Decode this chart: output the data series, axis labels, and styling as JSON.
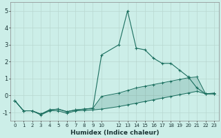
{
  "xlabel": "Humidex (Indice chaleur)",
  "x": [
    0,
    1,
    2,
    3,
    4,
    5,
    6,
    7,
    8,
    9,
    10,
    12,
    13,
    14,
    15,
    16,
    17,
    18,
    19,
    20,
    21,
    22,
    23
  ],
  "line_main": [
    -0.3,
    -0.9,
    -0.9,
    -1.1,
    -0.85,
    -0.8,
    -0.95,
    -0.85,
    -0.8,
    -0.75,
    2.4,
    3.0,
    5.0,
    2.8,
    2.7,
    2.2,
    1.9,
    1.9,
    1.5,
    1.1,
    0.45,
    0.1,
    0.1
  ],
  "line_upper": [
    -0.3,
    -0.9,
    -0.9,
    -1.1,
    -0.85,
    -0.8,
    -0.95,
    -0.85,
    -0.8,
    -0.75,
    -0.05,
    0.15,
    0.3,
    0.45,
    0.55,
    0.65,
    0.75,
    0.85,
    0.95,
    1.05,
    1.1,
    0.1,
    0.15
  ],
  "line_lower": [
    -0.3,
    -0.9,
    -0.9,
    -1.15,
    -0.9,
    -0.9,
    -1.05,
    -0.9,
    -0.88,
    -0.85,
    -0.8,
    -0.65,
    -0.55,
    -0.45,
    -0.35,
    -0.25,
    -0.15,
    -0.05,
    0.05,
    0.15,
    0.25,
    0.1,
    0.1
  ],
  "color": "#1a6e5e",
  "fill_color": "#1a6e5e",
  "bg_color": "#cceee8",
  "grid_color": "#b8d8d0",
  "ylim": [
    -1.5,
    5.5
  ],
  "xlim": [
    -0.5,
    23.5
  ],
  "yticks": [
    -1,
    0,
    1,
    2,
    3,
    4,
    5
  ],
  "xticks": [
    0,
    1,
    2,
    3,
    4,
    5,
    6,
    7,
    8,
    9,
    10,
    12,
    13,
    14,
    15,
    16,
    17,
    18,
    19,
    20,
    21,
    22,
    23
  ]
}
